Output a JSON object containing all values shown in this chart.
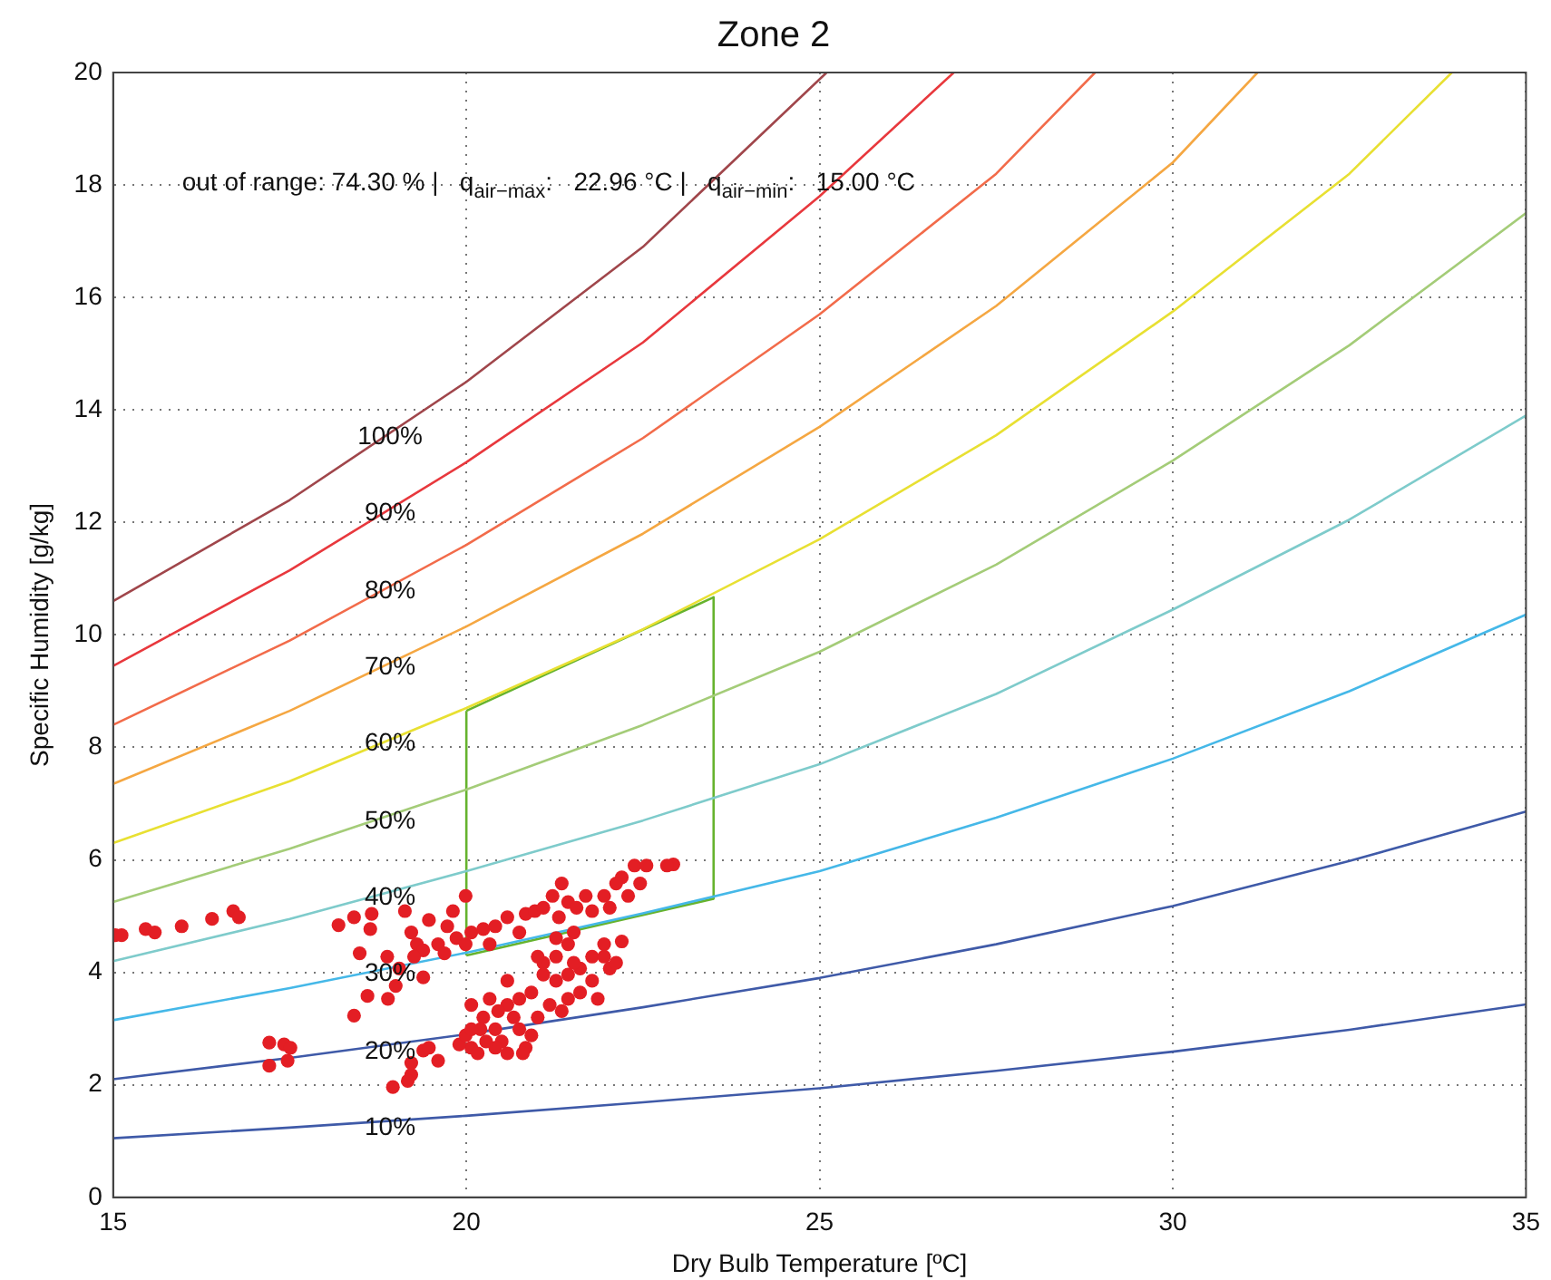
{
  "chart_data": {
    "type": "line",
    "title": "Zone 2",
    "xlabel": "Dry Bulb Temperature [ºC]",
    "ylabel": "Specific Humidity [g/kg]",
    "xlim": [
      15,
      35
    ],
    "xticks": [
      15,
      20,
      25,
      30,
      35
    ],
    "ylim": [
      0,
      20
    ],
    "yticks": [
      0,
      2,
      4,
      6,
      8,
      10,
      12,
      14,
      16,
      18,
      20
    ],
    "grid": true,
    "legend": false,
    "annotations": [
      "out of range: 74.30 % |   q$_{air−max}$:   22.96 °C |   q$_{air−min}$:   15.00 °C",
      "100%",
      "90%",
      "80%",
      "70%",
      "60%",
      "50%",
      "40%",
      "30%",
      "20%",
      "10%"
    ],
    "series": [
      {
        "color": "#a0464b",
        "x": [
          15,
          17.5,
          20,
          22.5,
          25.1
        ],
        "values": [
          10.6,
          12.4,
          14.5,
          16.9,
          20
        ]
      },
      {
        "color": "#e8383d",
        "x": [
          15,
          17.5,
          20,
          22.5,
          25,
          26.9
        ],
        "values": [
          9.45,
          11.15,
          13.07,
          15.2,
          17.8,
          20
        ]
      },
      {
        "color": "#f26b4a",
        "x": [
          15,
          17.5,
          20,
          22.5,
          25,
          27.5,
          28.9
        ],
        "values": [
          8.4,
          9.9,
          11.6,
          13.5,
          15.7,
          18.2,
          20
        ]
      },
      {
        "color": "#f5a742",
        "x": [
          15,
          17.5,
          20,
          22.5,
          25,
          27.5,
          30,
          31.2
        ],
        "values": [
          7.35,
          8.65,
          10.15,
          11.8,
          13.7,
          15.85,
          18.4,
          20
        ]
      },
      {
        "color": "#e8e032",
        "x": [
          15,
          17.5,
          20,
          22.5,
          25,
          27.5,
          30,
          32.5,
          33.95
        ],
        "values": [
          6.3,
          7.4,
          8.7,
          10.1,
          11.7,
          13.55,
          15.75,
          18.2,
          20
        ]
      },
      {
        "color": "#a4cc78",
        "x": [
          15,
          17.5,
          20,
          22.5,
          25,
          27.5,
          30,
          32.5,
          35
        ],
        "values": [
          5.25,
          6.2,
          7.25,
          8.4,
          9.7,
          11.25,
          13.1,
          15.15,
          17.5
        ]
      },
      {
        "color": "#7ecbcb",
        "x": [
          15,
          17.5,
          20,
          22.5,
          25,
          27.5,
          30,
          32.5,
          35
        ],
        "values": [
          4.2,
          4.95,
          5.8,
          6.7,
          7.7,
          8.95,
          10.45,
          12.05,
          13.9
        ]
      },
      {
        "color": "#45b8e8",
        "x": [
          15,
          17.5,
          20,
          22.5,
          25,
          27.5,
          30,
          32.5,
          35
        ],
        "values": [
          3.15,
          3.72,
          4.35,
          5.05,
          5.8,
          6.75,
          7.8,
          9.0,
          10.36
        ]
      },
      {
        "color": "#3f5aa8",
        "x": [
          15,
          17.5,
          20,
          22.5,
          25,
          27.5,
          30,
          32.5,
          35
        ],
        "values": [
          2.1,
          2.48,
          2.9,
          3.38,
          3.9,
          4.5,
          5.18,
          5.98,
          6.86
        ]
      },
      {
        "color": "#3f5aa8",
        "x": [
          15,
          17.5,
          20,
          22.5,
          25,
          27.5,
          30,
          32.5,
          35
        ],
        "values": [
          1.05,
          1.24,
          1.45,
          1.69,
          1.94,
          2.25,
          2.59,
          2.98,
          3.43
        ]
      },
      {
        "color": "#66b32e",
        "x": [
          20,
          23.5
        ],
        "values": [
          8.65,
          10.67
        ]
      },
      {
        "color": "#66b32e",
        "x": [
          23.5,
          23.5
        ],
        "values": [
          10.67,
          5.31
        ]
      },
      {
        "color": "#66b32e",
        "x": [
          23.5,
          20
        ],
        "values": [
          5.31,
          4.3
        ]
      },
      {
        "color": "#66b32e",
        "x": [
          20,
          20
        ],
        "values": [
          4.3,
          8.65
        ]
      },
      {
        "type": "scatter",
        "color": "#e31e24",
        "marker": "circle",
        "x": [
          15.03,
          15.12,
          15.46,
          15.59,
          15.97,
          16.4,
          16.7,
          16.78,
          18.19,
          18.41,
          18.66,
          18.64,
          18.49,
          18.88,
          19.05,
          19.39,
          18.6,
          18.89,
          18.41,
          19.0,
          17.21,
          17.42,
          17.51,
          17.21,
          17.47,
          18.96,
          19.22,
          19.17,
          19.39,
          19.47,
          19.6,
          19.22,
          19.13,
          19.22,
          19.3,
          19.39,
          19.47,
          19.6,
          19.73,
          19.81,
          19.86,
          19.99,
          19.99,
          19.69,
          19.26,
          20.07,
          20.24,
          20.41,
          20.33,
          20.58,
          20.84,
          20.75,
          20.97,
          21.09,
          21.22,
          21.35,
          21.44,
          21.31,
          21.56,
          21.69,
          21.78,
          21.95,
          22.03,
          22.2,
          22.38,
          22.55,
          22.46,
          22.29,
          22.12,
          22.93,
          22.84,
          21.52,
          21.95,
          22.2,
          21.44,
          21.78,
          21.61,
          20.07,
          20.24,
          20.41,
          20.07,
          19.9,
          20.16,
          20.5,
          20.58,
          20.75,
          20.92,
          21.01,
          21.09,
          21.27,
          21.44,
          21.61,
          21.78,
          21.09,
          21.27,
          21.44,
          20.92,
          20.58,
          20.41,
          20.75,
          21.18,
          21.35,
          21.86,
          22.03,
          22.12,
          21.95,
          20.28,
          19.99,
          20.84,
          20.33,
          20.67,
          20.45,
          20.2,
          21.52,
          21.01,
          20.8,
          20.07,
          20.58,
          21.27
        ],
        "values": [
          4.66,
          4.66,
          4.77,
          4.71,
          4.82,
          4.95,
          5.09,
          4.98,
          4.84,
          4.98,
          5.04,
          4.77,
          4.34,
          4.28,
          4.07,
          3.91,
          3.58,
          3.53,
          3.23,
          3.76,
          2.75,
          2.72,
          2.66,
          2.34,
          2.43,
          1.96,
          2.18,
          2.07,
          2.61,
          2.66,
          2.43,
          2.39,
          5.09,
          4.71,
          4.5,
          4.39,
          4.93,
          4.5,
          4.82,
          5.09,
          4.61,
          5.36,
          4.5,
          4.34,
          4.28,
          4.71,
          4.77,
          4.82,
          4.5,
          4.98,
          5.04,
          4.71,
          5.09,
          5.15,
          5.36,
          5.58,
          5.25,
          4.98,
          5.15,
          5.36,
          5.09,
          5.36,
          5.15,
          5.69,
          5.9,
          5.9,
          5.58,
          5.36,
          5.58,
          5.92,
          5.9,
          4.71,
          4.5,
          4.55,
          4.5,
          4.28,
          4.07,
          3.42,
          3.2,
          2.99,
          2.66,
          2.72,
          2.56,
          2.77,
          3.42,
          3.53,
          3.64,
          3.2,
          3.96,
          3.85,
          3.96,
          3.64,
          3.85,
          4.17,
          4.28,
          3.53,
          2.88,
          2.56,
          2.66,
          2.99,
          3.42,
          3.31,
          3.53,
          4.07,
          4.17,
          4.28,
          2.77,
          2.88,
          2.66,
          3.53,
          3.2,
          3.31,
          2.99,
          4.17,
          4.28,
          2.56,
          2.99,
          3.85,
          4.61
        ]
      }
    ]
  }
}
